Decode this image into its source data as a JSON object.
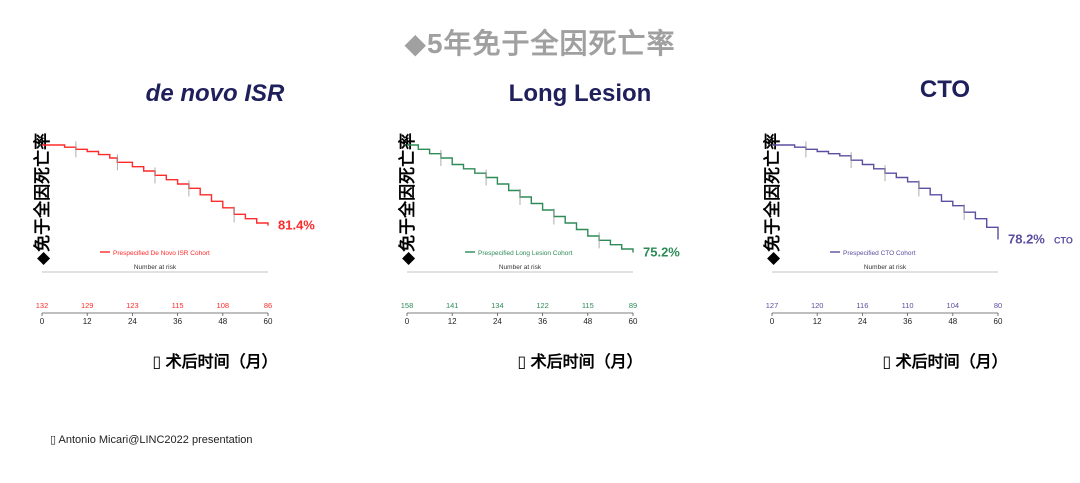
{
  "page_title": "◆5年免于全因死亡率",
  "footnote": "▯ Antonio Micari@LINC2022 presentation",
  "chart_data": [
    {
      "type": "line",
      "title": "de novo ISR",
      "ylabel": "◆免于全因死亡率",
      "xlabel": "▯ 术后时间（月）",
      "color": "#ff2a2a",
      "legend": "Prespecified De Novo ISR Cohort",
      "risk_title": "Number at risk",
      "x_ticks": [
        0,
        12,
        24,
        36,
        48,
        60
      ],
      "x_tick_labels": [
        "0",
        "12",
        "24",
        "36",
        "48",
        "60"
      ],
      "at_risk": [
        "132",
        "129",
        "123",
        "115",
        "108",
        "86"
      ],
      "end_label": "81.4%",
      "ylim": [
        0.7,
        1.0
      ],
      "xlim": [
        0,
        60
      ],
      "series": [
        {
          "x": [
            0,
            3,
            6,
            9,
            12,
            15,
            18,
            20,
            24,
            27,
            30,
            33,
            36,
            39,
            42,
            45,
            48,
            51,
            54,
            57,
            60
          ],
          "values": [
            1.0,
            1.0,
            0.995,
            0.99,
            0.985,
            0.978,
            0.97,
            0.96,
            0.95,
            0.94,
            0.93,
            0.92,
            0.91,
            0.9,
            0.885,
            0.87,
            0.855,
            0.84,
            0.83,
            0.82,
            0.814
          ]
        }
      ]
    },
    {
      "type": "line",
      "title": "Long Lesion",
      "ylabel": "◆免于全因死亡率",
      "xlabel": "▯ 术后时间（月）",
      "color": "#2e8b57",
      "legend": "Prespecified Long Lesion Cohort",
      "risk_title": "Number at risk",
      "x_ticks": [
        0,
        12,
        24,
        36,
        48,
        60
      ],
      "x_tick_labels": [
        "0",
        "12",
        "24",
        "36",
        "48",
        "60"
      ],
      "at_risk": [
        "158",
        "141",
        "134",
        "122",
        "115",
        "89"
      ],
      "end_label": "75.2%",
      "ylim": [
        0.7,
        1.0
      ],
      "xlim": [
        0,
        60
      ],
      "series": [
        {
          "x": [
            0,
            3,
            6,
            9,
            12,
            15,
            18,
            21,
            24,
            27,
            30,
            33,
            36,
            39,
            42,
            45,
            48,
            51,
            54,
            57,
            60
          ],
          "values": [
            1.0,
            0.99,
            0.98,
            0.97,
            0.955,
            0.945,
            0.935,
            0.925,
            0.91,
            0.895,
            0.88,
            0.865,
            0.85,
            0.835,
            0.82,
            0.805,
            0.79,
            0.78,
            0.77,
            0.76,
            0.752
          ]
        }
      ]
    },
    {
      "type": "line",
      "title": "CTO",
      "ylabel": "◆免于全因死亡率",
      "xlabel": "▯ 术后时间（月）",
      "color": "#5a4ea0",
      "legend": "Prespecified CTO Cohort",
      "risk_title": "Number at risk",
      "x_ticks": [
        0,
        12,
        24,
        36,
        48,
        60
      ],
      "x_tick_labels": [
        "0",
        "12",
        "24",
        "36",
        "48",
        "60"
      ],
      "at_risk": [
        "127",
        "120",
        "116",
        "110",
        "104",
        "80"
      ],
      "end_label": "78.2%",
      "end_suffix": "CTO",
      "ylim": [
        0.7,
        1.0
      ],
      "xlim": [
        0,
        60
      ],
      "series": [
        {
          "x": [
            0,
            3,
            6,
            9,
            12,
            15,
            18,
            21,
            24,
            27,
            30,
            33,
            36,
            39,
            42,
            45,
            48,
            51,
            54,
            57,
            60
          ],
          "values": [
            1.0,
            1.0,
            0.995,
            0.99,
            0.985,
            0.98,
            0.975,
            0.965,
            0.955,
            0.945,
            0.935,
            0.925,
            0.915,
            0.9,
            0.885,
            0.87,
            0.86,
            0.845,
            0.83,
            0.81,
            0.782
          ]
        }
      ]
    }
  ]
}
